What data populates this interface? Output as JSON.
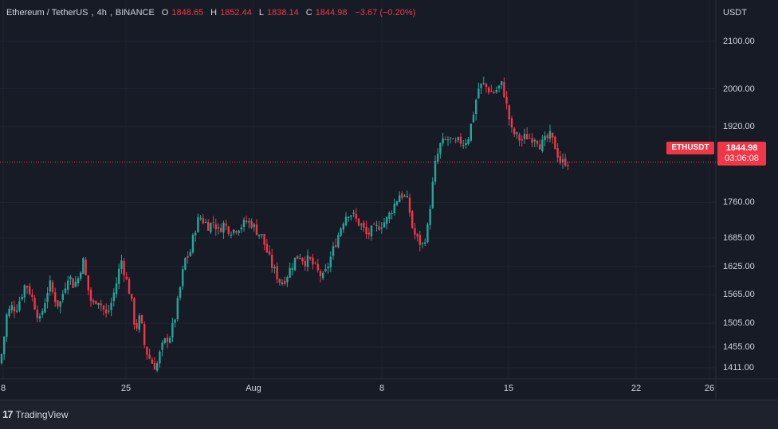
{
  "legend": {
    "symbol": "Ethereum / TetherUS",
    "interval": "4h",
    "exchange": "BINANCE",
    "open_label": "O",
    "open": "1848.65",
    "high_label": "H",
    "high": "1852.44",
    "low_label": "L",
    "low": "1838.14",
    "close_label": "C",
    "close": "1844.98",
    "change": "−3.67 (−0.20%)"
  },
  "price_scale": {
    "currency": "USDT"
  },
  "last_price": {
    "symbol": "ETHUSDT",
    "price": "1844.98",
    "countdown": "03:06:08"
  },
  "branding": {
    "mark": "17",
    "name": "TradingView"
  },
  "colors": {
    "up": "#26a69a",
    "down": "#f23645",
    "background": "#171b26",
    "grid": "#232733"
  },
  "chart_data": {
    "type": "candlestick",
    "x_ticks": [
      "8",
      "25",
      "Aug",
      "8",
      "15",
      "22",
      "26"
    ],
    "y_ticks": [
      2100.0,
      2000.0,
      1920.0,
      1760.0,
      1685.0,
      1625.0,
      1565.0,
      1505.0,
      1455.0,
      1411.0
    ],
    "y_tick_labels": [
      "2100.00",
      "2000.00",
      "1920.00",
      "1760.00",
      "1685.00",
      "1625.00",
      "1565.00",
      "1505.00",
      "1455.00",
      "1411.00"
    ],
    "ylim": [
      1400,
      2150
    ],
    "last_price": 1844.98,
    "close_path": [
      [
        0,
        1420
      ],
      [
        4,
        1460
      ],
      [
        8,
        1520
      ],
      [
        14,
        1540
      ],
      [
        20,
        1535
      ],
      [
        26,
        1560
      ],
      [
        32,
        1590
      ],
      [
        38,
        1570
      ],
      [
        44,
        1540
      ],
      [
        50,
        1510
      ],
      [
        56,
        1550
      ],
      [
        62,
        1590
      ],
      [
        68,
        1560
      ],
      [
        74,
        1540
      ],
      [
        80,
        1575
      ],
      [
        86,
        1610
      ],
      [
        92,
        1585
      ],
      [
        98,
        1600
      ],
      [
        104,
        1640
      ],
      [
        110,
        1580
      ],
      [
        116,
        1540
      ],
      [
        122,
        1560
      ],
      [
        128,
        1540
      ],
      [
        134,
        1520
      ],
      [
        140,
        1550
      ],
      [
        146,
        1590
      ],
      [
        152,
        1640
      ],
      [
        158,
        1600
      ],
      [
        164,
        1560
      ],
      [
        170,
        1490
      ],
      [
        176,
        1520
      ],
      [
        182,
        1450
      ],
      [
        188,
        1430
      ],
      [
        192,
        1418
      ],
      [
        196,
        1412
      ],
      [
        202,
        1450
      ],
      [
        208,
        1470
      ],
      [
        214,
        1480
      ],
      [
        220,
        1520
      ],
      [
        226,
        1580
      ],
      [
        232,
        1640
      ],
      [
        238,
        1650
      ],
      [
        244,
        1700
      ],
      [
        250,
        1730
      ],
      [
        256,
        1720
      ],
      [
        262,
        1710
      ],
      [
        268,
        1720
      ],
      [
        274,
        1700
      ],
      [
        280,
        1715
      ],
      [
        286,
        1705
      ],
      [
        292,
        1700
      ],
      [
        298,
        1708
      ],
      [
        304,
        1712
      ],
      [
        310,
        1720
      ],
      [
        316,
        1715
      ],
      [
        322,
        1700
      ],
      [
        328,
        1690
      ],
      [
        334,
        1660
      ],
      [
        340,
        1630
      ],
      [
        346,
        1610
      ],
      [
        352,
        1590
      ],
      [
        358,
        1600
      ],
      [
        364,
        1620
      ],
      [
        370,
        1640
      ],
      [
        376,
        1650
      ],
      [
        382,
        1635
      ],
      [
        388,
        1640
      ],
      [
        394,
        1625
      ],
      [
        400,
        1610
      ],
      [
        406,
        1600
      ],
      [
        412,
        1630
      ],
      [
        418,
        1660
      ],
      [
        424,
        1690
      ],
      [
        430,
        1720
      ],
      [
        436,
        1740
      ],
      [
        442,
        1735
      ],
      [
        448,
        1720
      ],
      [
        454,
        1710
      ],
      [
        460,
        1690
      ],
      [
        466,
        1700
      ],
      [
        472,
        1705
      ],
      [
        478,
        1715
      ],
      [
        484,
        1720
      ],
      [
        490,
        1740
      ],
      [
        496,
        1760
      ],
      [
        502,
        1780
      ],
      [
        508,
        1770
      ],
      [
        512,
        1760
      ],
      [
        518,
        1700
      ],
      [
        524,
        1680
      ],
      [
        530,
        1670
      ],
      [
        536,
        1700
      ],
      [
        540,
        1760
      ],
      [
        546,
        1840
      ],
      [
        552,
        1880
      ],
      [
        558,
        1890
      ],
      [
        564,
        1895
      ],
      [
        570,
        1880
      ],
      [
        576,
        1890
      ],
      [
        582,
        1885
      ],
      [
        588,
        1900
      ],
      [
        594,
        1950
      ],
      [
        600,
        2000
      ],
      [
        606,
        2010
      ],
      [
        612,
        2000
      ],
      [
        618,
        1990
      ],
      [
        624,
        2000
      ],
      [
        630,
        2010
      ],
      [
        636,
        1960
      ],
      [
        642,
        1910
      ],
      [
        648,
        1900
      ],
      [
        654,
        1890
      ],
      [
        660,
        1900
      ],
      [
        666,
        1895
      ],
      [
        672,
        1900
      ],
      [
        678,
        1880
      ],
      [
        684,
        1890
      ],
      [
        690,
        1900
      ],
      [
        696,
        1880
      ],
      [
        700,
        1860
      ],
      [
        704,
        1840
      ],
      [
        708,
        1848
      ],
      [
        712,
        1844
      ]
    ]
  }
}
